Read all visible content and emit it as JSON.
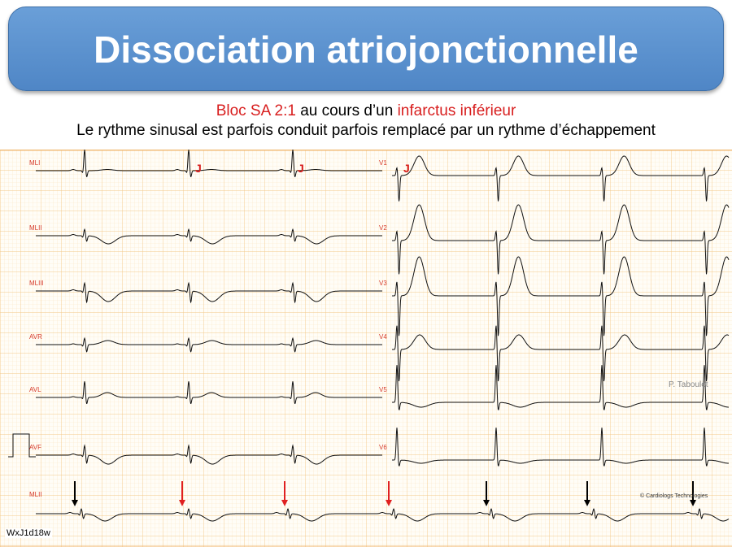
{
  "title": "Dissociation atriojonctionnelle",
  "subtitle": {
    "part1_red": "Bloc SA 2:1",
    "part2": " au cours d’un ",
    "part3_red": "infarctus inférieur",
    "line2": "Le rythme sinusal est parfois conduit parfois remplacé par un rythme d’échappement"
  },
  "leads_left": [
    "MLI",
    "MLII",
    "MLIII",
    "AVR",
    "AVL",
    "AVF"
  ],
  "leads_right": [
    "V1",
    "V2",
    "V3",
    "V4",
    "V5",
    "V6"
  ],
  "rhythm_lead": "MLII",
  "junctional_marker": "J",
  "credit": "P. Taboulet",
  "copyright": "© Cardiologs Technologies",
  "record_id": "WxJ1d18w",
  "colors": {
    "banner": "#5b92d0",
    "accent_red": "#d81e1e",
    "grid_minor": "#fbe6c2",
    "grid_major": "#f3c98a",
    "trace": "#111111",
    "arrow_black": "#000000",
    "arrow_red": "#e02020"
  }
}
